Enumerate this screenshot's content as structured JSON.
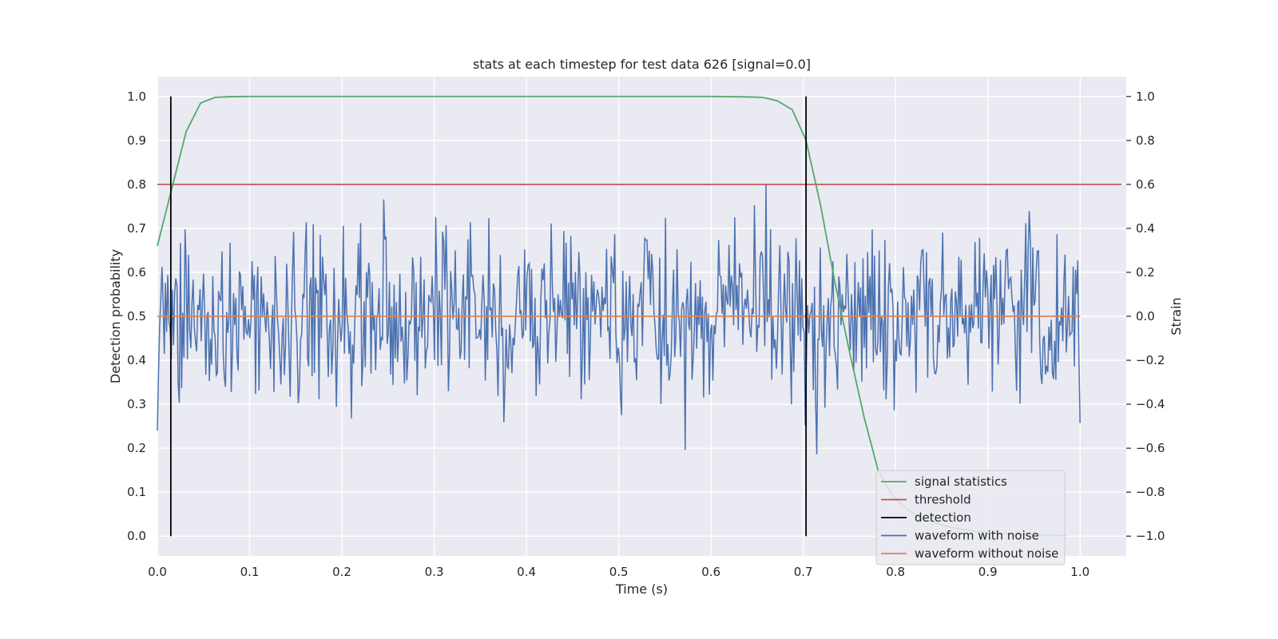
{
  "chart_data": {
    "type": "line",
    "title": "stats at each timestep for test data 626 [signal=0.0]",
    "xlabel": "Time (s)",
    "ylabel_left": "Detection probability",
    "ylabel_right": "Strain",
    "xlim": [
      0.0,
      1.05
    ],
    "ylim_left": [
      -0.045,
      1.045
    ],
    "ylim_right": [
      -1.09,
      1.09
    ],
    "x_ticks": [
      "0.0",
      "0.1",
      "0.2",
      "0.3",
      "0.4",
      "0.5",
      "0.6",
      "0.7",
      "0.8",
      "0.9",
      "1.0"
    ],
    "y_ticks_left": [
      "0.0",
      "0.1",
      "0.2",
      "0.3",
      "0.4",
      "0.5",
      "0.6",
      "0.7",
      "0.8",
      "0.9",
      "1.0"
    ],
    "y_ticks_right": [
      "−1.0",
      "−0.8",
      "−0.6",
      "−0.4",
      "−0.2",
      "0.0",
      "0.2",
      "0.4",
      "0.6",
      "0.8",
      "1.0"
    ],
    "grid": true,
    "background": "#eaeaf2",
    "legend_position": "lower-right",
    "series": [
      {
        "name": "signal statistics",
        "color": "#55a868",
        "axis": "left",
        "x": [
          0.0,
          0.0156,
          0.0312,
          0.0469,
          0.0625,
          0.0781,
          0.1,
          0.2,
          0.3,
          0.4,
          0.5,
          0.6,
          0.64,
          0.656,
          0.672,
          0.688,
          0.703,
          0.719,
          0.734,
          0.75,
          0.766,
          0.781,
          0.797,
          0.813,
          0.828,
          0.844,
          0.86,
          0.875,
          0.891,
          0.906,
          0.922,
          0.938,
          0.953,
          0.969,
          0.984
        ],
        "values": [
          0.66,
          0.79,
          0.92,
          0.985,
          0.998,
          0.9995,
          1.0,
          1.0,
          1.0,
          1.0,
          1.0,
          1.0,
          0.999,
          0.998,
          0.99,
          0.97,
          0.9,
          0.75,
          0.58,
          0.42,
          0.27,
          0.15,
          0.09,
          0.06,
          0.04,
          0.03,
          0.02,
          0.015,
          0.01,
          0.007,
          0.005,
          0.004,
          0.003,
          0.002,
          0.001
        ]
      },
      {
        "name": "threshold",
        "color": "#c44e52",
        "axis": "left",
        "x": [
          0.0,
          1.045
        ],
        "values": [
          0.8,
          0.8
        ]
      },
      {
        "name": "detection",
        "color": "#000000",
        "axis": "left",
        "type": "vlines",
        "x": [
          0.0146,
          0.703
        ],
        "range": [
          0.0,
          1.0
        ]
      },
      {
        "name": "waveform with noise",
        "color": "#4c72b0",
        "axis": "right",
        "x_range": [
          0.0,
          1.0
        ],
        "n_points": 800,
        "amplitude": 1.0,
        "description": "noisy random waveform spanning the full time range"
      },
      {
        "name": "waveform without noise",
        "color": "#dd8452",
        "axis": "right",
        "x": [
          0.0,
          1.0
        ],
        "values": [
          0.0,
          0.0
        ]
      }
    ]
  }
}
